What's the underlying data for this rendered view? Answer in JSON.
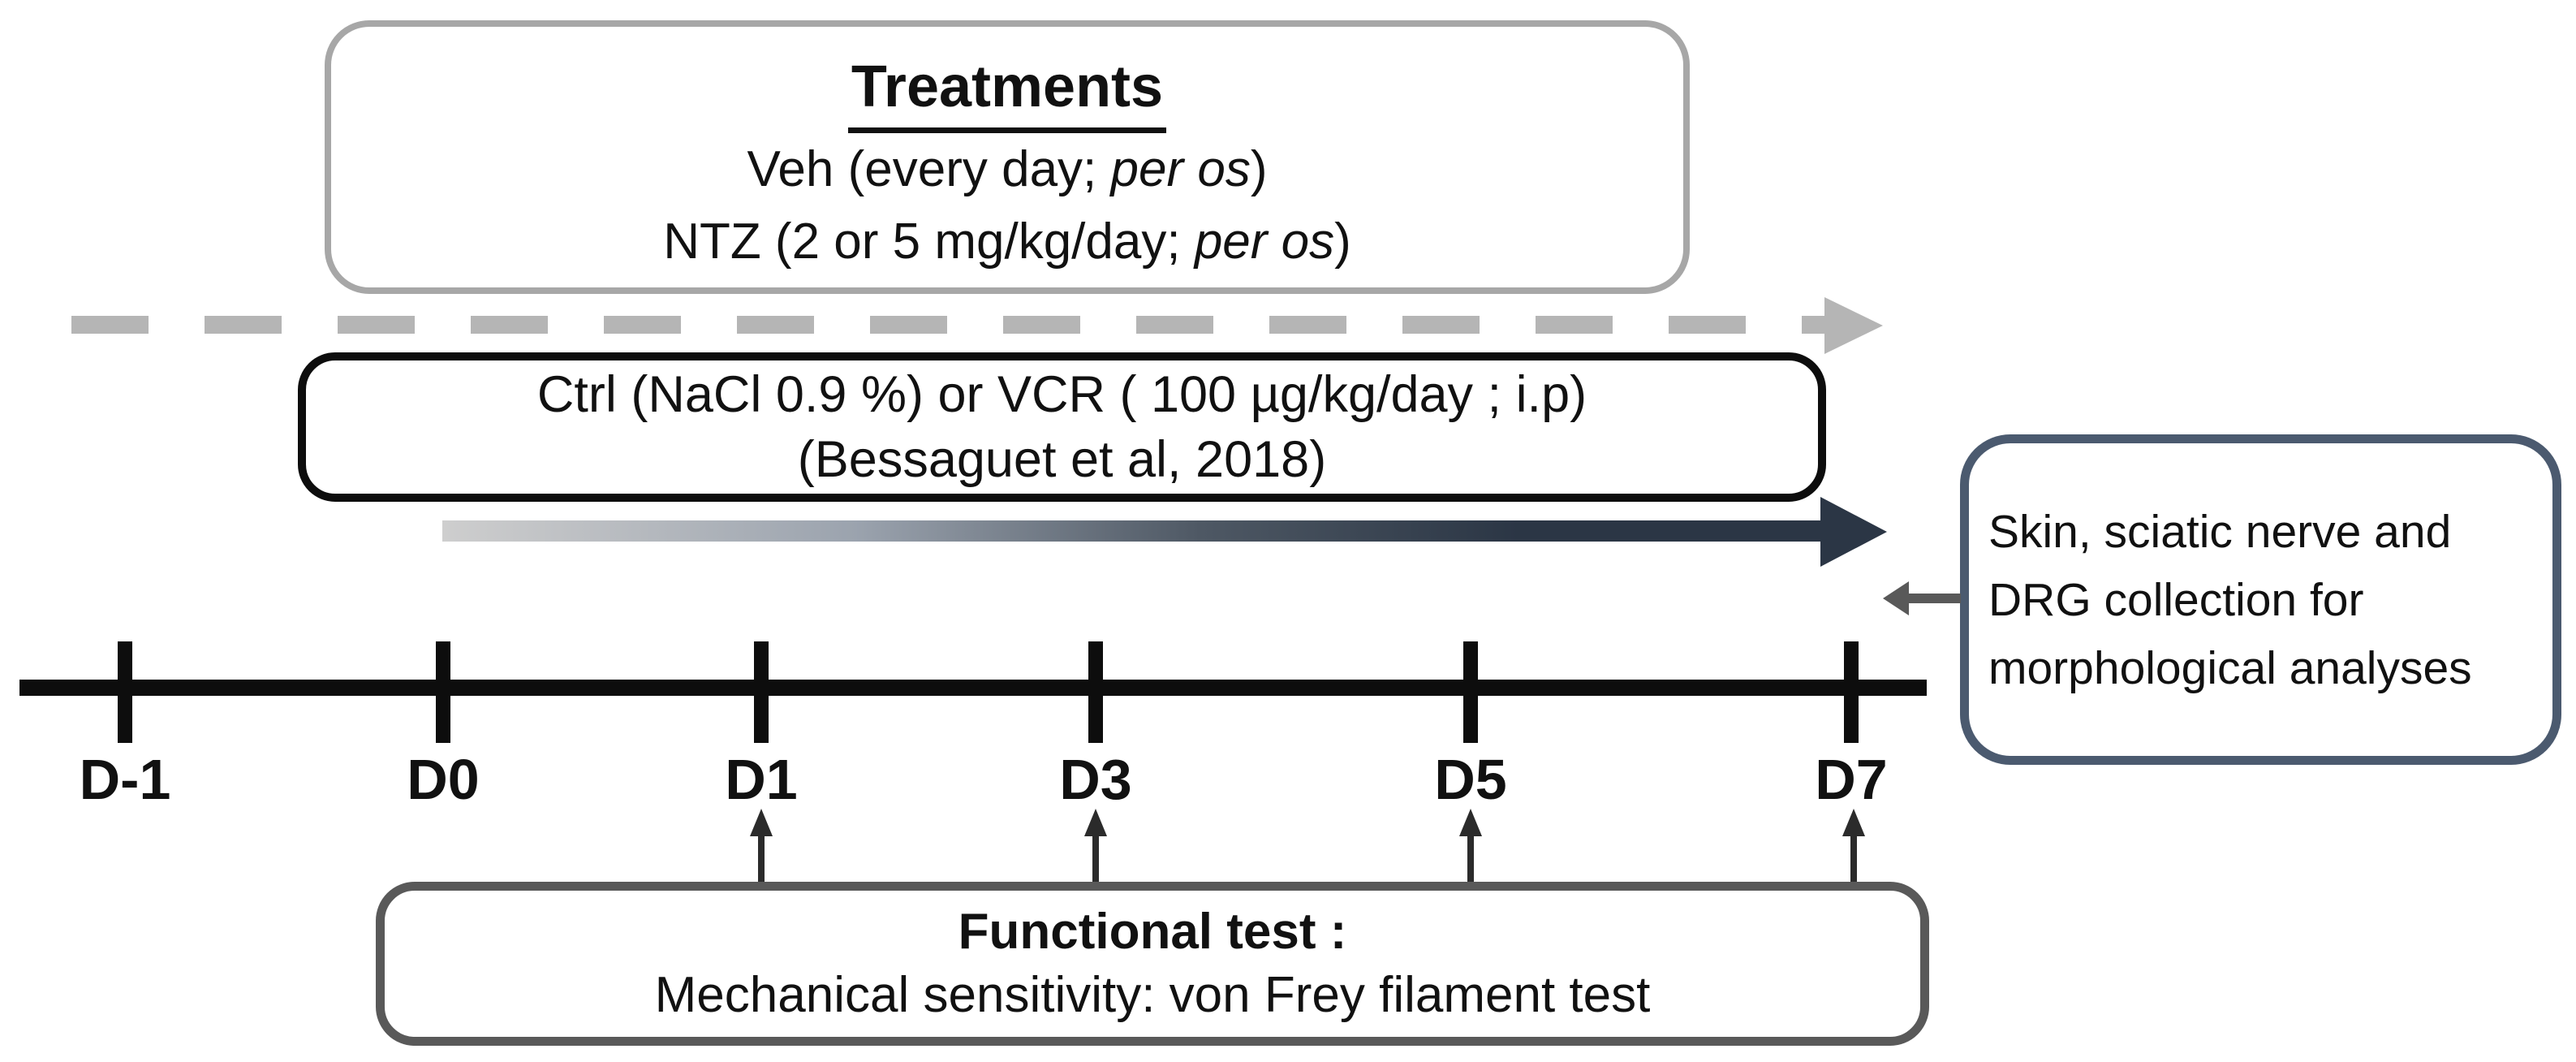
{
  "treatments_box": {
    "title": "Treatments",
    "veh": {
      "prefix": "Veh (every day; ",
      "italic": "per os",
      "suffix": ")"
    },
    "ntz": {
      "prefix": "NTZ (2 or 5 mg/kg/day; ",
      "italic": "per os",
      "suffix": ")"
    }
  },
  "vcr_box": {
    "line1": "Ctrl (NaCl 0.9 %) or VCR ( 100 µg/kg/day ; i.p)",
    "line2": "(Bessaguet et al, 2018)"
  },
  "collection_box": {
    "lines": [
      "Skin, sciatic nerve and",
      "DRG collection for",
      "morphological analyses"
    ]
  },
  "timeline": {
    "labels": [
      "D-1",
      "D0",
      "D1",
      "D3",
      "D5",
      "D7"
    ]
  },
  "functional_box": {
    "title": "Functional test :",
    "subtitle": "Mechanical sensitivity: von Frey filament test"
  },
  "colors": {
    "light_gray_border": "#a7a7a7",
    "dash_gray": "#b5b5b5",
    "black": "#0d0d0d",
    "dark_navy": "#2b3645",
    "slate_border": "#4b5a6f",
    "dark_gray": "#595959"
  }
}
